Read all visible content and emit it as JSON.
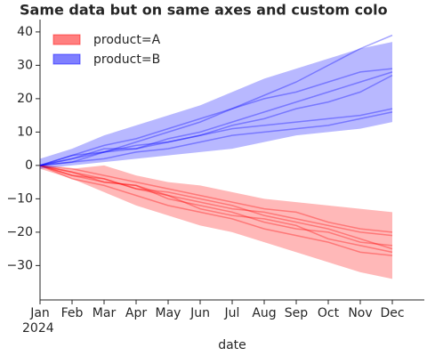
{
  "chart_data": {
    "type": "band-line",
    "title": "Same data but on same axes and custom colo",
    "x_label": "date",
    "categories": [
      "Jan",
      "Feb",
      "Mar",
      "Apr",
      "May",
      "Jun",
      "Jul",
      "Aug",
      "Sep",
      "Oct",
      "Nov",
      "Dec"
    ],
    "category_sublabel": "2024",
    "ylim": [
      -40.3,
      43.7
    ],
    "yticks": [
      {
        "value": -30,
        "label": "−30"
      },
      {
        "value": -20,
        "label": "−20"
      },
      {
        "value": -10,
        "label": "−10"
      },
      0,
      10,
      20,
      30,
      40
    ],
    "legend": "upper left",
    "series": [
      {
        "name": "product=A",
        "color": "#ff0000",
        "band_upper": [
          0,
          -1,
          0,
          -3,
          -5,
          -6,
          -8,
          -10,
          -11,
          -12,
          -13,
          -14
        ],
        "band_lower": [
          -1,
          -4,
          -8,
          -12,
          -15,
          -18,
          -20,
          -23,
          -26,
          -29,
          -32,
          -34
        ],
        "lines": [
          [
            0,
            -3,
            -5,
            -6,
            -9,
            -11,
            -13,
            -14,
            -16,
            -18,
            -20,
            -21
          ],
          [
            0,
            -2,
            -4,
            -7,
            -8,
            -10,
            -12,
            -15,
            -17,
            -19,
            -22,
            -25
          ],
          [
            0,
            -1,
            -3,
            -5,
            -7,
            -9,
            -11,
            -13,
            -14,
            -17,
            -19,
            -20
          ],
          [
            0,
            -4,
            -6,
            -9,
            -12,
            -14,
            -16,
            -19,
            -21,
            -23,
            -26,
            -27
          ],
          [
            0,
            -2,
            -5,
            -6,
            -10,
            -12,
            -14,
            -17,
            -19,
            -20,
            -23,
            -24
          ],
          [
            0,
            -3,
            -4,
            -7,
            -9,
            -13,
            -15,
            -16,
            -18,
            -22,
            -24,
            -26
          ]
        ]
      },
      {
        "name": "product=B",
        "color": "#0000ff",
        "band_upper": [
          2,
          5,
          9,
          12,
          15,
          18,
          22,
          26,
          29,
          32,
          35,
          37
        ],
        "band_lower": [
          -1,
          0,
          1,
          2,
          3,
          4,
          5,
          7,
          9,
          10,
          11,
          13
        ],
        "lines": [
          [
            0,
            3,
            6,
            8,
            11,
            14,
            17,
            20,
            22,
            25,
            28,
            29
          ],
          [
            0,
            2,
            5,
            5,
            8,
            10,
            13,
            16,
            19,
            22,
            25,
            28
          ],
          [
            0,
            1,
            2,
            4,
            5,
            7,
            9,
            10,
            11,
            12,
            14,
            16
          ],
          [
            0,
            2,
            4,
            7,
            10,
            13,
            17,
            21,
            25,
            30,
            35,
            39
          ],
          [
            0,
            1,
            4,
            6,
            7,
            9,
            12,
            14,
            17,
            19,
            22,
            27
          ],
          [
            0,
            3,
            4,
            5,
            7,
            9,
            11,
            12,
            13,
            14,
            15,
            17
          ]
        ]
      }
    ]
  }
}
